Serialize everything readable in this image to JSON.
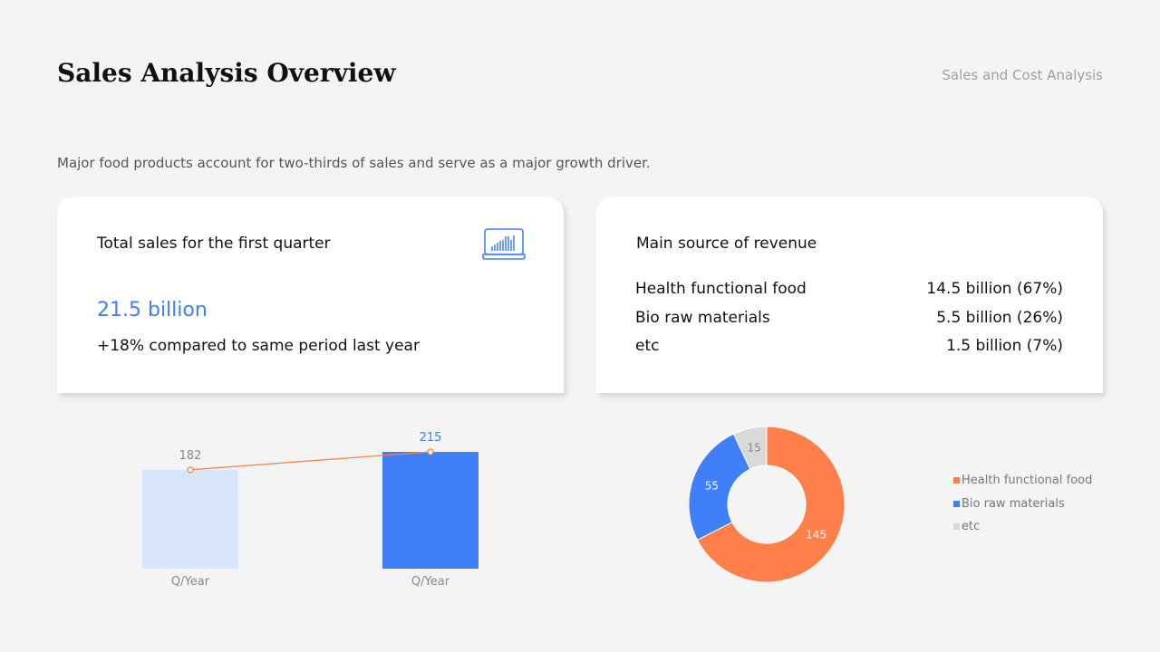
{
  "header": {
    "title": "Sales Analysis Overview",
    "section": "Sales and Cost Analysis",
    "subtitle": "Major food products account for two-thirds of sales and serve as a major growth driver."
  },
  "card_total": {
    "title": "Total sales for the first quarter",
    "value": "21.5 billion",
    "comparison": "+18% compared to same period last year",
    "icon": "laptop-chart-icon"
  },
  "card_revenue": {
    "title": "Main source of revenue",
    "rows": [
      {
        "label": "Health functional food",
        "value": "14.5 billion (67%)"
      },
      {
        "label": "Bio raw materials",
        "value": "5.5 billion (26%)"
      },
      {
        "label": "etc",
        "value": "1.5 billion (7%)"
      }
    ]
  },
  "chart_data": [
    {
      "type": "bar",
      "categories": [
        "Q/Year",
        "Q/Year"
      ],
      "values": [
        182,
        215
      ],
      "labels": [
        "182",
        "215"
      ],
      "bar_colors": [
        "#d8e6fd",
        "#3f7ff8"
      ],
      "line_overlay": {
        "values": [
          182,
          215
        ],
        "color": "#ff7f4a"
      },
      "ylim": [
        0,
        215
      ],
      "grid": false
    },
    {
      "type": "pie",
      "donut": true,
      "categories": [
        "Health functional food",
        "Bio raw materials",
        "etc"
      ],
      "values": [
        145,
        55,
        15
      ],
      "labels": [
        "145",
        "55",
        "15"
      ],
      "colors": [
        "#ff7f4a",
        "#3f7ff8",
        "#d9d9d9"
      ],
      "legend": "right"
    }
  ]
}
